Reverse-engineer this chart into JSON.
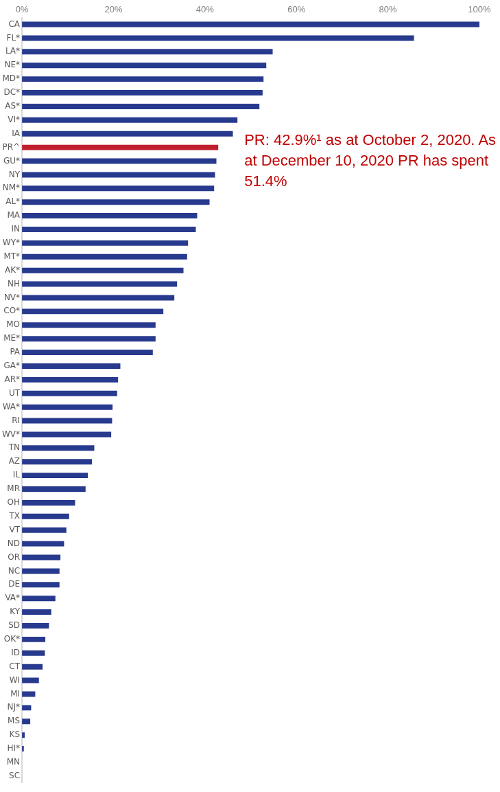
{
  "chart_data": {
    "type": "bar",
    "orientation": "horizontal",
    "categories": [
      "CA",
      "FL*",
      "LA*",
      "NE*",
      "MD*",
      "DC*",
      "AS*",
      "VI*",
      "IA",
      "PR^",
      "GU*",
      "NY",
      "NM*",
      "AL*",
      "MA",
      "IN",
      "WY*",
      "MT*",
      "AK*",
      "NH",
      "NV*",
      "CO*",
      "MO",
      "ME*",
      "PA",
      "GA*",
      "AR*",
      "UT",
      "WA*",
      "RI",
      "WV*",
      "TN",
      "AZ",
      "IL",
      "MR",
      "OH",
      "TX",
      "VT",
      "ND",
      "OR",
      "NC",
      "DE",
      "VA*",
      "KY",
      "SD",
      "OK*",
      "ID",
      "CT",
      "WI",
      "MI",
      "NJ*",
      "MS",
      "KS",
      "HI*",
      "MN",
      "SC"
    ],
    "values": [
      100,
      85.7,
      54.8,
      53.4,
      52.8,
      52.6,
      51.9,
      47.1,
      46.1,
      42.9,
      42.5,
      42.2,
      42.0,
      41.0,
      38.3,
      38.0,
      36.3,
      36.1,
      35.3,
      33.9,
      33.3,
      30.9,
      29.2,
      29.2,
      28.6,
      21.5,
      21.0,
      20.8,
      19.8,
      19.7,
      19.5,
      15.8,
      15.3,
      14.4,
      13.9,
      11.6,
      10.3,
      9.7,
      9.2,
      8.4,
      8.2,
      8.2,
      7.3,
      6.4,
      5.9,
      5.1,
      5.0,
      4.5,
      3.7,
      2.9,
      2.0,
      1.8,
      0.6,
      0.4,
      0,
      0
    ],
    "colors": [
      "#283a8e",
      "#283a8e",
      "#283a8e",
      "#283a8e",
      "#283a8e",
      "#283a8e",
      "#283a8e",
      "#283a8e",
      "#283a8e",
      "#c0202e",
      "#283a8e",
      "#283a8e",
      "#283a8e",
      "#283a8e",
      "#283a8e",
      "#283a8e",
      "#283a8e",
      "#283a8e",
      "#283a8e",
      "#283a8e",
      "#283a8e",
      "#283a8e",
      "#283a8e",
      "#283a8e",
      "#283a8e",
      "#283a8e",
      "#283a8e",
      "#283a8e",
      "#283a8e",
      "#283a8e",
      "#283a8e",
      "#283a8e",
      "#283a8e",
      "#283a8e",
      "#283a8e",
      "#283a8e",
      "#283a8e",
      "#283a8e",
      "#283a8e",
      "#283a8e",
      "#283a8e",
      "#283a8e",
      "#283a8e",
      "#283a8e",
      "#283a8e",
      "#283a8e",
      "#283a8e",
      "#283a8e",
      "#283a8e",
      "#283a8e",
      "#283a8e",
      "#283a8e",
      "#283a8e",
      "#283a8e",
      "#283a8e",
      "#283a8e"
    ],
    "xlim": [
      0,
      100
    ],
    "xticks": [
      {
        "value": 0,
        "label": "0%"
      },
      {
        "value": 20,
        "label": "20%"
      },
      {
        "value": 40,
        "label": "40%"
      },
      {
        "value": 60,
        "label": "60%"
      },
      {
        "value": 80,
        "label": "80%"
      },
      {
        "value": 100,
        "label": "100%"
      }
    ],
    "grid": false,
    "legend": false,
    "annotations": [
      {
        "text": "PR: 42.9%¹ as at October 2, 2020. As at December 10, 2020 PR has spent 51.4%",
        "x": 42.9,
        "y": "PR^"
      }
    ]
  }
}
